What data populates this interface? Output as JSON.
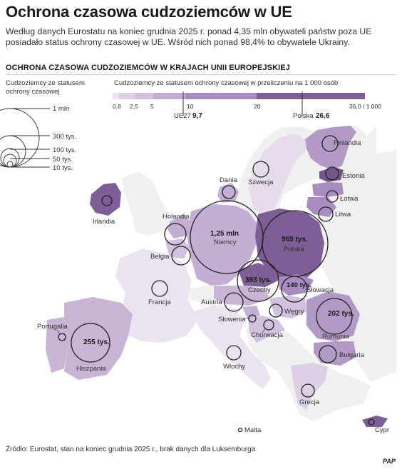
{
  "header": {
    "title": "Ochrona czasowa cudzoziemców w UE",
    "lead": "Według danych Eurostatu na koniec grudnia 2025 r. ponad 4,35 mln obywateli państw poza UE posiadało status ochrony czasowej w UE. Wśród nich ponad 98,4% to obywatele Ukrainy.",
    "subtitle": "OCHRONA CZASOWA CUDZOZIEMCÓW W KRAJACH UNII EUROPEJSKIEJ"
  },
  "legend": {
    "size_title": "Cudzoziemcy ze statusem ochrony czasowej",
    "size_items": [
      {
        "label": "1 mln",
        "value": 1000000
      },
      {
        "label": "300 tys.",
        "value": 300000
      },
      {
        "label": "100 tys.",
        "value": 100000
      },
      {
        "label": "50 tys.",
        "value": 50000
      },
      {
        "label": "10 tys.",
        "value": 10000
      }
    ],
    "rate_title": "Cudzoziemcy ze statusem ochrony czasowej w przeliczeniu na 1 000 osób",
    "rate_ticks": [
      "0,8",
      "2,5",
      "5",
      "10",
      "20",
      "36,0 / 1 000"
    ],
    "rate_colors": [
      "#ebe3ef",
      "#ddd0e6",
      "#c9b4d6",
      "#b399c6",
      "#977ab0",
      "#74568d"
    ],
    "ue27_label": "UE27",
    "ue27_value": "9,7",
    "poland_label": "Polska",
    "poland_value": "26,6"
  },
  "countries": [
    {
      "name": "Finlandia",
      "bubble_label": ""
    },
    {
      "name": "Szwecja",
      "bubble_label": ""
    },
    {
      "name": "Estonia",
      "bubble_label": ""
    },
    {
      "name": "Łotwa",
      "bubble_label": ""
    },
    {
      "name": "Litwa",
      "bubble_label": ""
    },
    {
      "name": "Dania",
      "bubble_label": ""
    },
    {
      "name": "Irlandia",
      "bubble_label": ""
    },
    {
      "name": "Holandia",
      "bubble_label": ""
    },
    {
      "name": "Belgia",
      "bubble_label": ""
    },
    {
      "name": "Niemcy",
      "bubble_label": "1,25 mln"
    },
    {
      "name": "Polska",
      "bubble_label": "969 tys."
    },
    {
      "name": "Czechy",
      "bubble_label": "393 tys."
    },
    {
      "name": "Słowacja",
      "bubble_label": "140 tys."
    },
    {
      "name": "Francja",
      "bubble_label": ""
    },
    {
      "name": "Austria",
      "bubble_label": ""
    },
    {
      "name": "Węgry",
      "bubble_label": ""
    },
    {
      "name": "Słowenia",
      "bubble_label": ""
    },
    {
      "name": "Chorwacja",
      "bubble_label": ""
    },
    {
      "name": "Rumunia",
      "bubble_label": "202 tys."
    },
    {
      "name": "Bułgaria",
      "bubble_label": ""
    },
    {
      "name": "Portugalia",
      "bubble_label": ""
    },
    {
      "name": "Hiszpania",
      "bubble_label": "255 tys."
    },
    {
      "name": "Włochy",
      "bubble_label": ""
    },
    {
      "name": "Grecja",
      "bubble_label": ""
    },
    {
      "name": "Malta",
      "bubble_label": ""
    },
    {
      "name": "Cypr",
      "bubble_label": ""
    }
  ],
  "footer": {
    "source": "Źródło: Eurostat, stan na koniec grudnia 2025 r., brak danych dla Luksemburga",
    "logo": "PAP"
  }
}
